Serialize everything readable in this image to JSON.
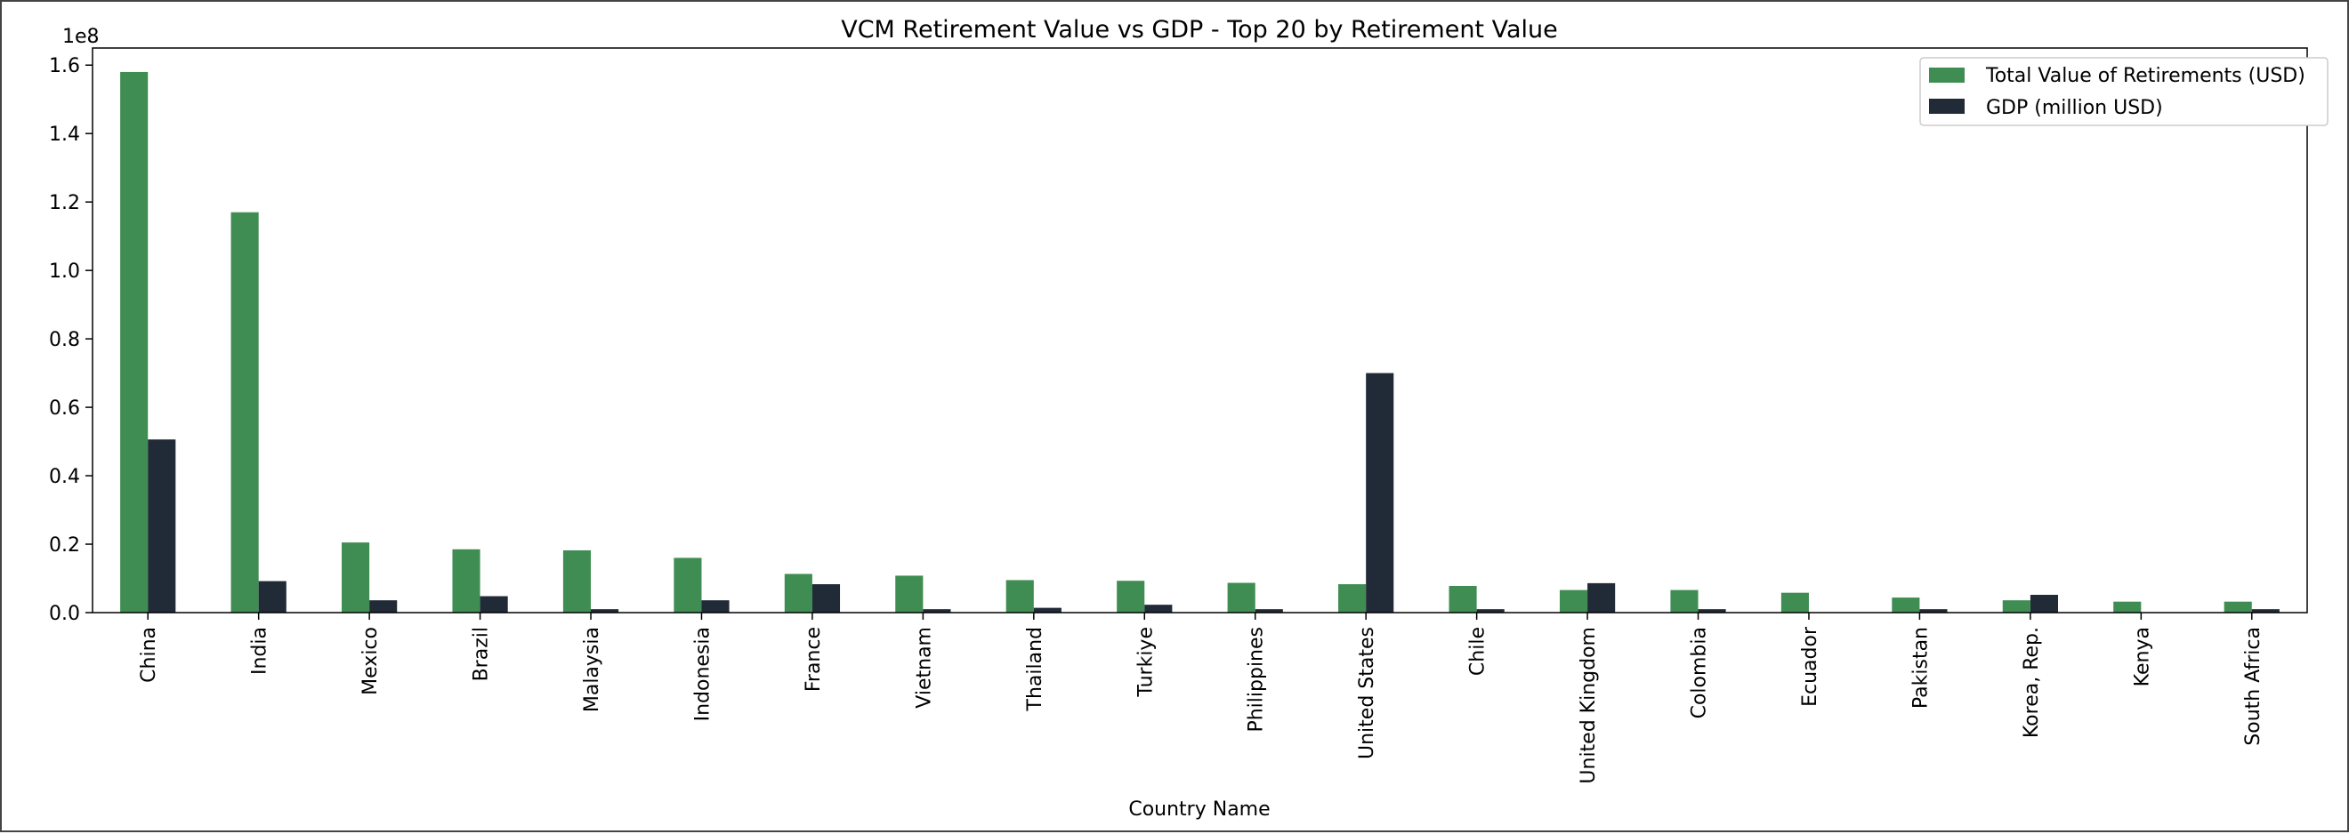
{
  "chart_data": {
    "type": "bar",
    "title": "VCM Retirement Value vs GDP - Top 20 by Retirement Value",
    "xlabel": "Country Name",
    "ylabel": "",
    "offset_label": "1e8",
    "ylim": [
      0,
      1.65
    ],
    "yticks": [
      "0.0",
      "0.2",
      "0.4",
      "0.6",
      "0.8",
      "1.0",
      "1.2",
      "1.4",
      "1.6"
    ],
    "legend_position": "top-right",
    "categories": [
      "China",
      "India",
      "Mexico",
      "Brazil",
      "Malaysia",
      "Indonesia",
      "France",
      "Vietnam",
      "Thailand",
      "Turkiye",
      "Philippines",
      "United States",
      "Chile",
      "United Kingdom",
      "Colombia",
      "Ecuador",
      "Pakistan",
      "Korea, Rep.",
      "Kenya",
      "South Africa"
    ],
    "series": [
      {
        "name": "Total Value of Retirements (USD)",
        "color": "#3f8d52",
        "values": [
          1.58,
          1.17,
          0.205,
          0.185,
          0.182,
          0.16,
          0.113,
          0.108,
          0.095,
          0.093,
          0.087,
          0.083,
          0.078,
          0.066,
          0.066,
          0.058,
          0.044,
          0.036,
          0.032,
          0.032
        ]
      },
      {
        "name": "GDP (million USD)",
        "color": "#212a37",
        "values": [
          0.506,
          0.092,
          0.036,
          0.048,
          0.01,
          0.036,
          0.083,
          0.01,
          0.014,
          0.023,
          0.01,
          0.7,
          0.01,
          0.086,
          0.01,
          0.0,
          0.01,
          0.052,
          0.0,
          0.01
        ]
      }
    ]
  }
}
